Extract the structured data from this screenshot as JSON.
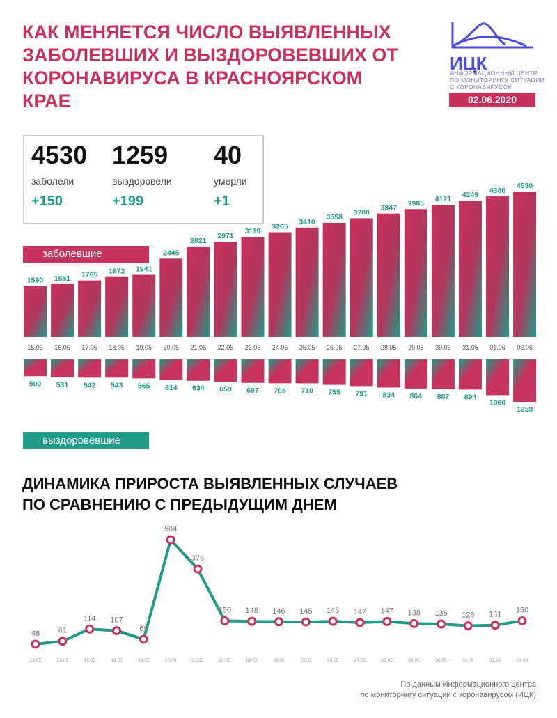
{
  "header": {
    "title": "КАК МЕНЯЕТСЯ ЧИСЛО ВЫЯВЛЕННЫХ\nЗАБОЛЕВШИХ И ВЫЗДОРОВЕВШИХ ОТ\nКОРОНАВИРУСА В КРАСНОЯРСКОМ КРАЕ",
    "logo_abbr": "ИЦК",
    "logo_text": "ИНФОРМАЦИОННЫЙ ЦЕНТР\nПО МОНИТОРИНГУ СИТУАЦИИ\nС КОРОНАВИРУСОМ",
    "date": "02.06.2020"
  },
  "stats": [
    {
      "value": "4530",
      "label": "заболели",
      "delta": "+150"
    },
    {
      "value": "1259",
      "label": "выздоровели",
      "delta": "+199"
    },
    {
      "value": "40",
      "label": "умерли",
      "delta": "+1"
    }
  ],
  "labels": {
    "sick": "заболевшие",
    "recovered": "выздоровевшие"
  },
  "subtitle": "ДИНАМИКА ПРИРОСТА ВЫЯВЛЕННЫХ СЛУЧАЕВ\nПО СРАВНЕНИЮ С ПРЕДЫДУЩИМ ДНЕМ",
  "source": "По данным Информационного центра\nпо мониторингу ситуации с коронавирусом (ИЦК)",
  "colors": {
    "pink": "#c8315b",
    "teal": "#1f9b88"
  },
  "chart_data": [
    {
      "type": "bar",
      "title": "заболевшие",
      "categories": [
        "15.05",
        "16.05",
        "17.05",
        "18.05",
        "19.05",
        "20.05",
        "21.05",
        "22.05",
        "23.05",
        "24.05",
        "25.05",
        "26.05",
        "27.05",
        "28.05",
        "29.05",
        "30.05",
        "31.05",
        "01.06",
        "02.06"
      ],
      "values": [
        1590,
        1651,
        1765,
        1872,
        1941,
        2445,
        2821,
        2971,
        3119,
        3265,
        3410,
        3558,
        3700,
        3847,
        3985,
        4121,
        4249,
        4380,
        4530
      ]
    },
    {
      "type": "bar",
      "title": "выздоровевшие",
      "categories": [
        "15.05",
        "16.05",
        "17.05",
        "18.05",
        "19.05",
        "20.05",
        "21.05",
        "22.05",
        "23.05",
        "24.05",
        "25.05",
        "26.05",
        "27.05",
        "28.05",
        "29.05",
        "30.05",
        "31.05",
        "01.06",
        "02.06"
      ],
      "values": [
        500,
        531,
        542,
        543,
        565,
        614,
        634,
        659,
        697,
        708,
        710,
        755,
        791,
        834,
        864,
        887,
        894,
        1060,
        1259
      ]
    },
    {
      "type": "line",
      "title": "ДИНАМИКА ПРИРОСТА ВЫЯВЛЕННЫХ СЛУЧАЕВ ПО СРАВНЕНИЮ С ПРЕДЫДУЩИМ ДНЕМ",
      "categories": [
        "15.05",
        "16.05",
        "17.05",
        "18.05",
        "19.05",
        "20.05",
        "21.05",
        "22.05",
        "23.05",
        "24.05",
        "25.05",
        "26.05",
        "27.05",
        "28.05",
        "29.05",
        "30.05",
        "31.05",
        "01.06",
        "02.06"
      ],
      "values": [
        48,
        61,
        114,
        107,
        69,
        504,
        376,
        150,
        148,
        146,
        145,
        148,
        142,
        147,
        138,
        136,
        128,
        131,
        150
      ]
    }
  ]
}
